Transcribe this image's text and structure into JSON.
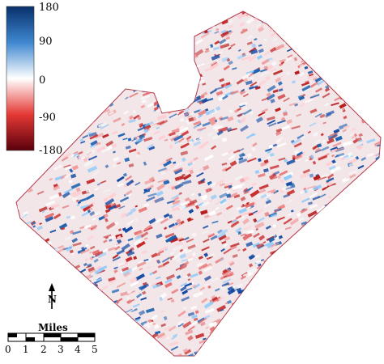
{
  "legend": {
    "labels": [
      "180",
      "90",
      "0",
      "-90",
      "-180"
    ],
    "colors": {
      "top": "#08306b",
      "upper_mid": "#4a90d9",
      "center": "#ffffff",
      "lower_mid": "#e53935",
      "bottom": "#67000d"
    }
  },
  "north_arrow": {
    "label": "N"
  },
  "scale_bar": {
    "title": "Miles",
    "ticks": [
      "0",
      "1",
      "2",
      "3",
      "4",
      "5"
    ]
  }
}
